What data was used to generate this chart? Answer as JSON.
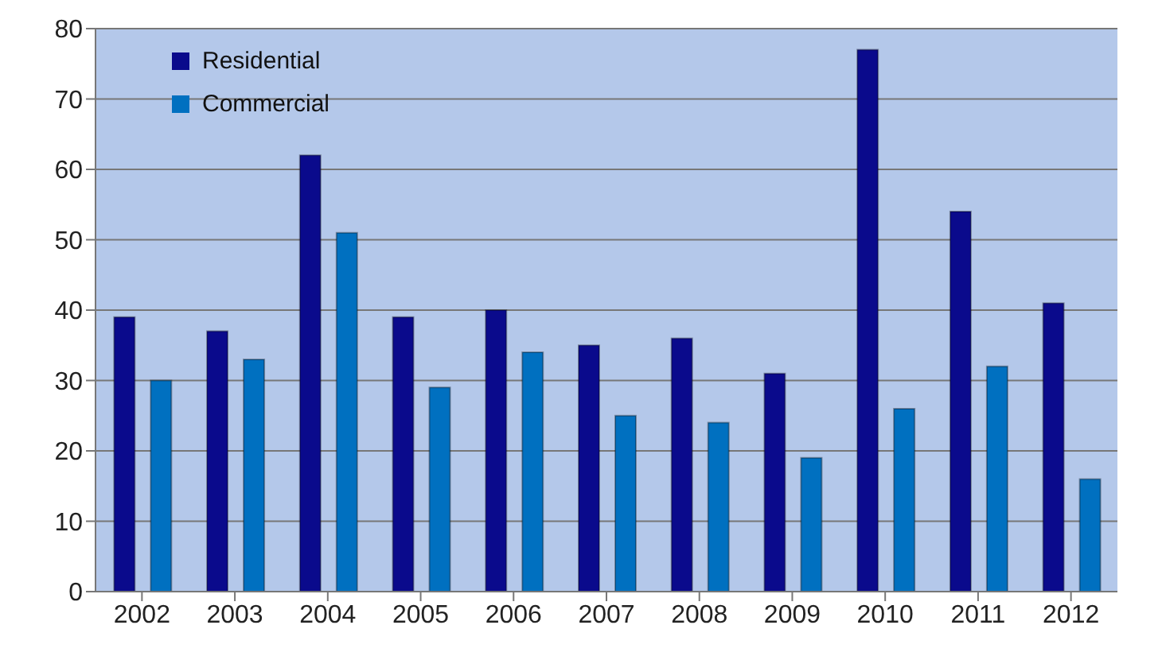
{
  "chart_data": {
    "type": "bar",
    "categories": [
      "2002",
      "2003",
      "2004",
      "2005",
      "2006",
      "2007",
      "2008",
      "2009",
      "2010",
      "2011",
      "2012"
    ],
    "series": [
      {
        "name": "Residential",
        "color": "#0a0a8c",
        "values": [
          39,
          37,
          62,
          39,
          40,
          35,
          36,
          31,
          77,
          54,
          41
        ]
      },
      {
        "name": "Commercial",
        "color": "#0070c0",
        "values": [
          30,
          33,
          51,
          29,
          34,
          25,
          24,
          19,
          26,
          32,
          16
        ]
      }
    ],
    "ylim": [
      0,
      80
    ],
    "yticks": [
      0,
      10,
      20,
      30,
      40,
      50,
      60,
      70,
      80
    ],
    "grid": "y",
    "legend": "top left"
  }
}
